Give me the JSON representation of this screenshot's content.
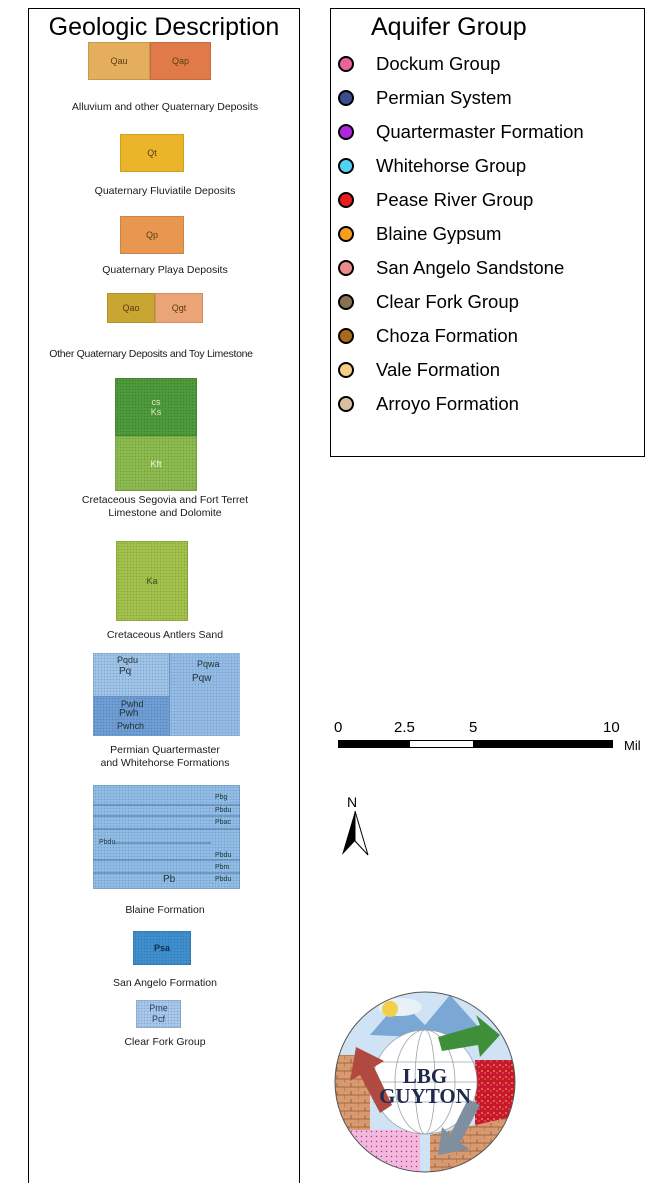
{
  "geologic_panel": {
    "title": "Geologic Description",
    "units": {
      "alluvium": {
        "labels": [
          "Qau",
          "Qap"
        ],
        "colors": [
          "#e5ae5c",
          "#e07b49"
        ],
        "caption": "Alluvium and other Quaternary Deposits"
      },
      "fluviatile": {
        "label": "Qt",
        "color": "#ebb52a",
        "caption": "Quaternary Fluviatile Deposits"
      },
      "playa": {
        "label": "Qp",
        "color": "#e89650",
        "caption": "Quaternary Playa Deposits"
      },
      "other_quaternary": {
        "labels": [
          "Qao",
          "Qgt"
        ],
        "colors": [
          "#c9a531",
          "#eba476"
        ],
        "caption": "Other Quaternary Deposits and Toy Limestone"
      },
      "segovia": {
        "top_labels": [
          "cs",
          "Ks"
        ],
        "bottom_label": "Kft",
        "colors": [
          "#4f9a3c",
          "#8cbc4f"
        ],
        "caption_lines": [
          "Cretaceous Segovia and Fort Terret",
          "Limestone and Dolomite"
        ]
      },
      "antlers": {
        "label": "Ka",
        "color": "#a3c24c",
        "caption": "Cretaceous Antlers Sand"
      },
      "quartermaster": {
        "labels": [
          "Pqdu",
          "Pq",
          "Pqwa",
          "Pqw",
          "Pwhd",
          "Pwh",
          "Pwhch"
        ],
        "colors": [
          "#9ec4ea",
          "#6e9ed6"
        ],
        "caption_lines": [
          "Permian Quartermaster",
          "and Whitehorse Formations"
        ]
      },
      "blaine": {
        "labels": [
          "Pbg",
          "Pbdu",
          "Pbac",
          "Pbdu",
          "Pbdu",
          "Pbm",
          "Pbdu",
          "Pb"
        ],
        "color": "#8fbde8",
        "caption": "Blaine Formation"
      },
      "san_angelo": {
        "label": "Psa",
        "color": "#3f8fcf",
        "caption": "San Angelo Formation"
      },
      "clear_fork": {
        "labels": [
          "Pme",
          "Pcf"
        ],
        "color": "#a7c7ec",
        "caption": "Clear Fork Group"
      }
    }
  },
  "aquifer_panel": {
    "title": "Aquifer Group",
    "items": [
      {
        "label": "Dockum Group",
        "color": "#e8649a"
      },
      {
        "label": "Permian System",
        "color": "#3b4d8c"
      },
      {
        "label": "Quartermaster Formation",
        "color": "#b026e0"
      },
      {
        "label": "Whitehorse Group",
        "color": "#4fd4f4"
      },
      {
        "label": "Pease River Group",
        "color": "#e81c1c"
      },
      {
        "label": "Blaine Gypsum",
        "color": "#f59f1c"
      },
      {
        "label": "San Angelo Sandstone",
        "color": "#ef8a8a"
      },
      {
        "label": "Clear Fork Group",
        "color": "#877153"
      },
      {
        "label": "Choza Formation",
        "color": "#a86a16"
      },
      {
        "label": "Vale Formation",
        "color": "#f6cd86"
      },
      {
        "label": "Arroyo Formation",
        "color": "#d7c0a0"
      }
    ]
  },
  "scale_bar": {
    "labels": [
      "0",
      "2.5",
      "5",
      "10"
    ],
    "unit": "Mil"
  },
  "north_arrow": {
    "label": "N"
  },
  "logo": {
    "line1": "LBG",
    "line2": "GUYTON"
  }
}
